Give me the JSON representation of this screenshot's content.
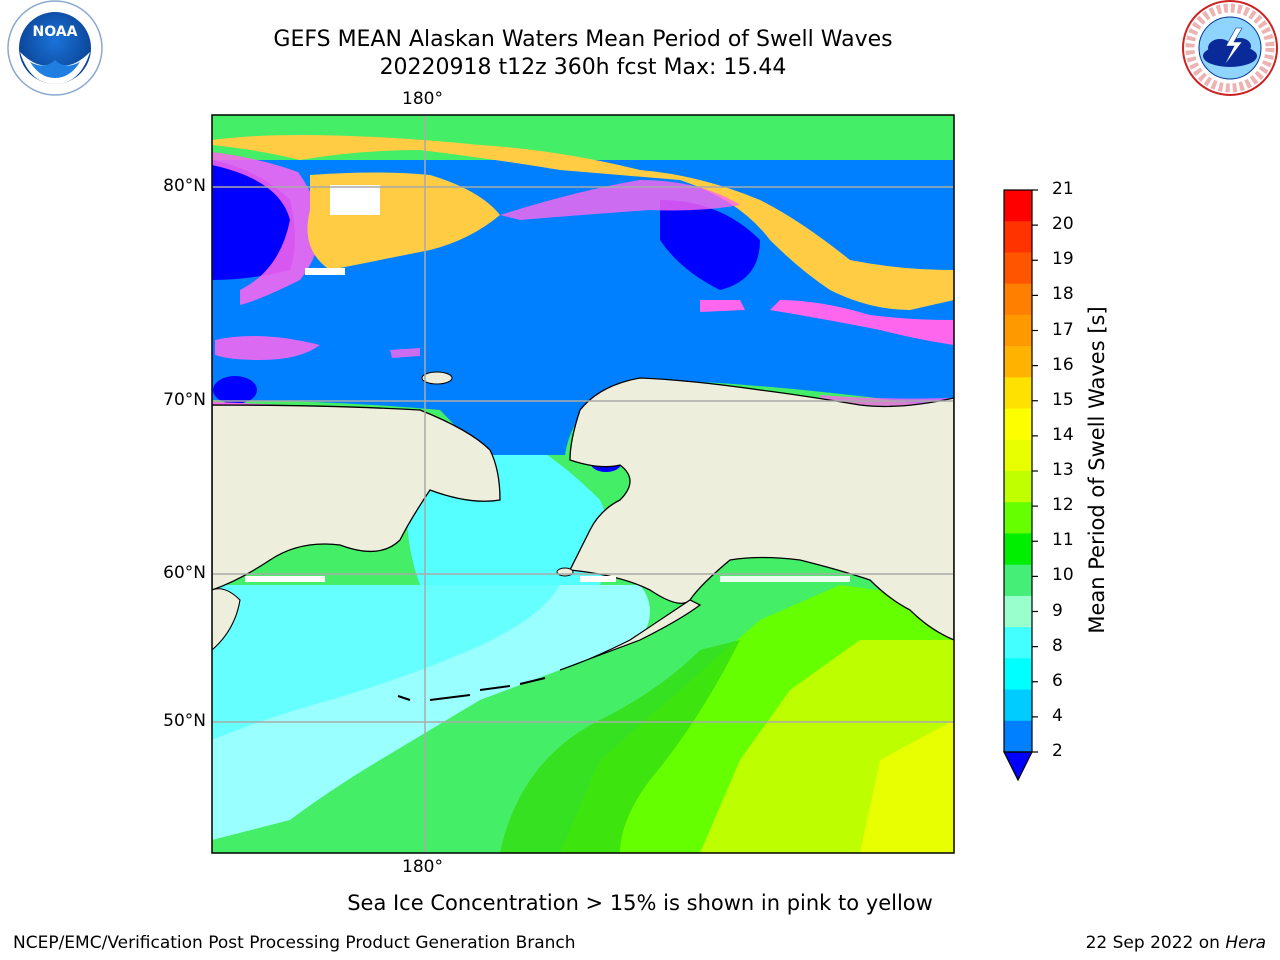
{
  "title": {
    "line1": "GEFS MEAN Alaskan Waters Mean Period of Swell Waves",
    "line2": "20220918 t12z 360h fcst   Max: 15.44"
  },
  "logos": {
    "left": {
      "name": "noaa-logo",
      "text": "NOAA"
    },
    "right": {
      "name": "nws-logo",
      "text": "NATIONAL WEATHER SERVICE"
    }
  },
  "map": {
    "lon_label_top": "180°",
    "lon_label_bottom": "180°",
    "lat_labels": [
      "80°N",
      "70°N",
      "60°N",
      "50°N"
    ],
    "colors": {
      "ocean_low": "#0080ff",
      "ocean_deep": "#0000ff",
      "cyan": "#55ffff",
      "light_green": "#44ee66",
      "green": "#33dd11",
      "yellow_green": "#ccff00",
      "land": "#eeeedd",
      "ice_pink": "#ff66ee",
      "ice_yellow": "#ffcc44"
    }
  },
  "colorbar": {
    "label": "Mean Period of Swell Waves [s]",
    "ticks": [
      "21",
      "20",
      "19",
      "18",
      "17",
      "16",
      "15",
      "14",
      "13",
      "12",
      "11",
      "10",
      "9",
      "8",
      "6",
      "4",
      "2"
    ],
    "colors": [
      "#ff0000",
      "#ff3300",
      "#ff5500",
      "#ff7f00",
      "#ff9900",
      "#ffb300",
      "#ffe100",
      "#fdff00",
      "#e7ff00",
      "#c0ff00",
      "#66ff00",
      "#00ee00",
      "#44ee77",
      "#99ffcc",
      "#44ffff",
      "#00ffff",
      "#00ccff",
      "#0080ff"
    ],
    "extend_color": "#0000ff"
  },
  "caption": "Sea Ice Concentration > 15% is shown in pink to yellow",
  "footer": {
    "left": "NCEP/EMC/Verification Post Processing Product Generation Branch",
    "right_date": "22 Sep 2022 on ",
    "right_machine": "Hera"
  }
}
